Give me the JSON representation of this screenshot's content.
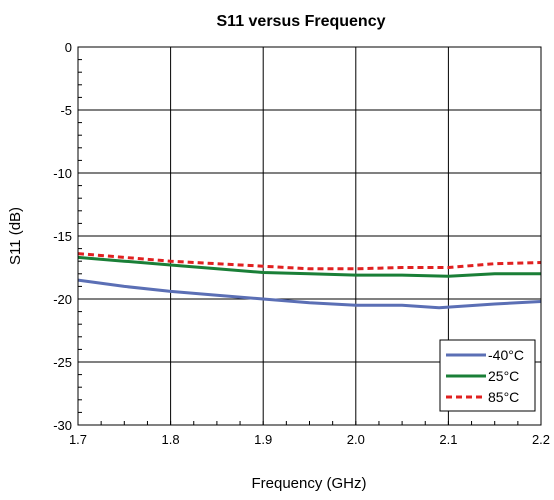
{
  "chart_data": {
    "type": "line",
    "title": "S11 versus Frequency",
    "xlabel": "Frequency (GHz)",
    "ylabel": "S11 (dB)",
    "xlim": [
      1.7,
      2.2
    ],
    "ylim": [
      -30,
      0
    ],
    "x_ticks": [
      1.7,
      1.8,
      1.9,
      2.0,
      2.1,
      2.2
    ],
    "x_tick_labels": [
      "1.7",
      "1.8",
      "1.9",
      "2.0",
      "2.1",
      "2.2"
    ],
    "y_ticks": [
      0,
      -5,
      -10,
      -15,
      -20,
      -25,
      -30
    ],
    "y_tick_labels": [
      "0",
      "-5",
      "-10",
      "-15",
      "-20",
      "-25",
      "-30"
    ],
    "grid": true,
    "legend_position": "bottom-right",
    "series": [
      {
        "name": "-40°C",
        "color": "#5b6fb5",
        "style": "solid",
        "x": [
          1.7,
          1.75,
          1.8,
          1.85,
          1.9,
          1.95,
          2.0,
          2.05,
          2.09,
          2.15,
          2.2
        ],
        "y": [
          -18.5,
          -19.0,
          -19.4,
          -19.7,
          -20.0,
          -20.3,
          -20.5,
          -20.5,
          -20.7,
          -20.4,
          -20.2
        ]
      },
      {
        "name": "25°C",
        "color": "#1a7f37",
        "style": "solid",
        "x": [
          1.7,
          1.75,
          1.8,
          1.85,
          1.9,
          1.95,
          2.0,
          2.05,
          2.1,
          2.15,
          2.2
        ],
        "y": [
          -16.7,
          -17.0,
          -17.3,
          -17.6,
          -17.9,
          -18.0,
          -18.1,
          -18.1,
          -18.2,
          -18.0,
          -18.0
        ]
      },
      {
        "name": "85°C",
        "color": "#e02020",
        "style": "dashed",
        "x": [
          1.7,
          1.75,
          1.8,
          1.85,
          1.9,
          1.95,
          2.0,
          2.05,
          2.1,
          2.15,
          2.2
        ],
        "y": [
          -16.4,
          -16.7,
          -17.0,
          -17.2,
          -17.4,
          -17.6,
          -17.6,
          -17.5,
          -17.5,
          -17.2,
          -17.1
        ]
      }
    ]
  }
}
